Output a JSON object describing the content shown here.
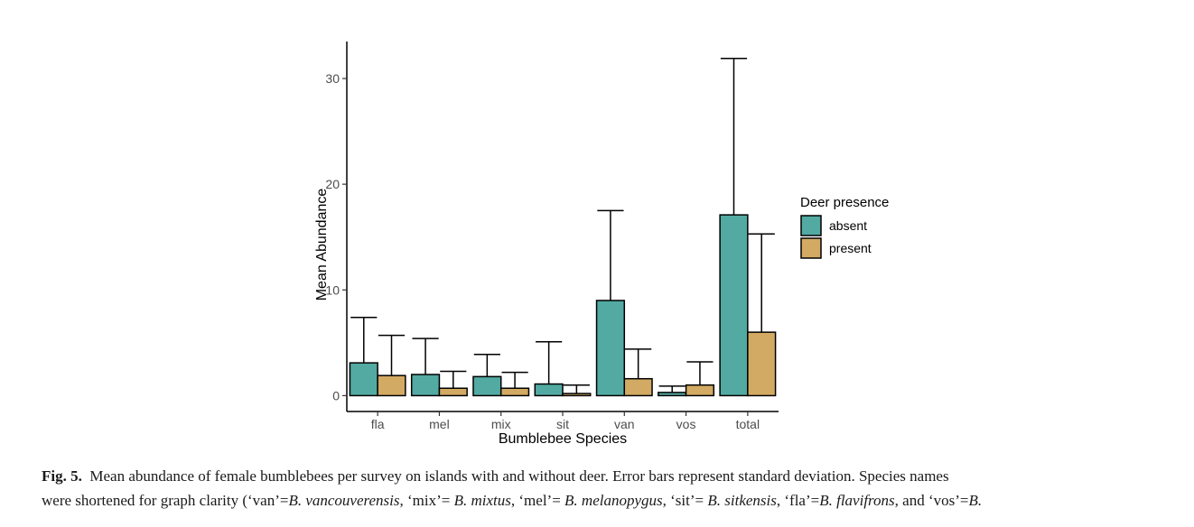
{
  "chart_data": {
    "type": "bar",
    "title": "",
    "xlabel": "Bumblebee Species",
    "ylabel": "Mean Abundance",
    "categories": [
      "fla",
      "mel",
      "mix",
      "sit",
      "van",
      "vos",
      "total"
    ],
    "ylim": [
      -1.5,
      33.5
    ],
    "yticks": [
      0,
      10,
      20,
      30
    ],
    "grid": false,
    "legend": {
      "title": "Deer presence",
      "placement": "right"
    },
    "series": [
      {
        "name": "absent",
        "color": "#52aaa2",
        "values": [
          3.1,
          2.0,
          1.8,
          1.1,
          9.0,
          0.3,
          17.1
        ],
        "error_upper": [
          7.4,
          5.4,
          3.9,
          5.1,
          17.5,
          0.9,
          31.9
        ]
      },
      {
        "name": "present",
        "color": "#d3aa63",
        "values": [
          1.9,
          0.7,
          0.7,
          0.2,
          1.6,
          1.0,
          6.0
        ],
        "error_upper": [
          5.7,
          2.3,
          2.2,
          1.0,
          4.4,
          3.2,
          15.3
        ]
      }
    ]
  },
  "caption": {
    "label": "Fig. 5.",
    "line1": "Mean abundance of female bumblebees per survey on islands with and without deer. Error bars represent standard deviation. Species names",
    "line2_parts": [
      {
        "text": "were shortened for graph clarity (‘van’=",
        "italic": false
      },
      {
        "text": "B. vancouverensis",
        "italic": true
      },
      {
        "text": ", ‘mix’= ",
        "italic": false
      },
      {
        "text": "B. mixtus",
        "italic": true
      },
      {
        "text": ", ‘mel’= ",
        "italic": false
      },
      {
        "text": "B. melanopygus",
        "italic": true
      },
      {
        "text": ", ‘sit’= ",
        "italic": false
      },
      {
        "text": "B. sitkensis",
        "italic": true
      },
      {
        "text": ", ‘fla’=",
        "italic": false
      },
      {
        "text": "B. flavifrons",
        "italic": true
      },
      {
        "text": ", and ‘vos’=",
        "italic": false
      },
      {
        "text": "B.",
        "italic": true
      }
    ]
  }
}
